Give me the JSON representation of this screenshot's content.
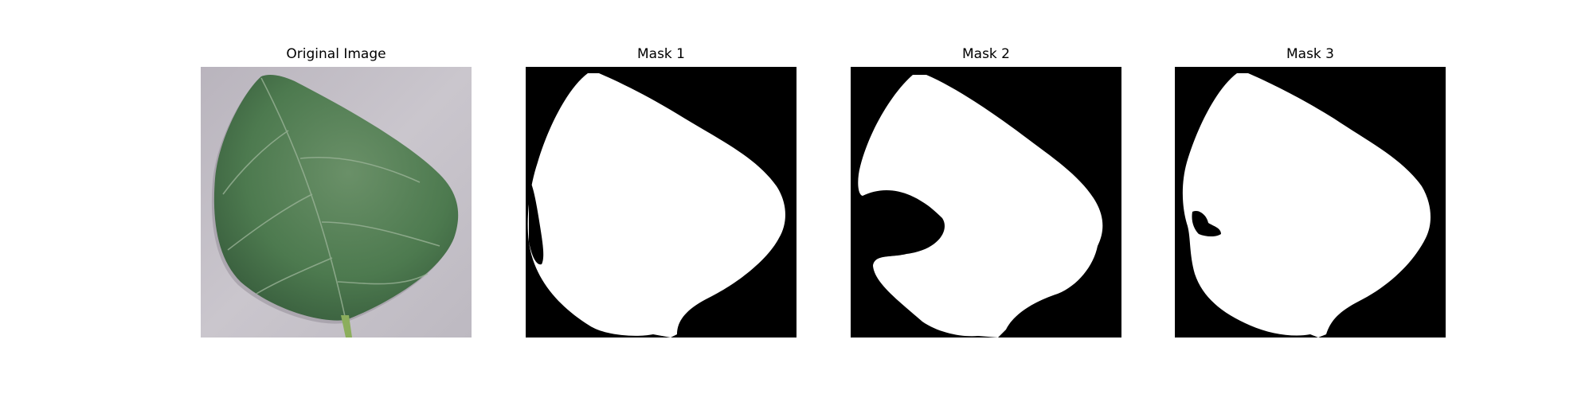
{
  "figure": {
    "panels": [
      {
        "title": "Original Image",
        "kind": "photo",
        "subject": "leaf-photo"
      },
      {
        "title": "Mask 1",
        "kind": "mask",
        "subject": "segmentation-mask"
      },
      {
        "title": "Mask 2",
        "kind": "mask",
        "subject": "segmentation-mask"
      },
      {
        "title": "Mask 3",
        "kind": "mask",
        "subject": "segmentation-mask"
      }
    ]
  },
  "colors": {
    "mask_foreground": "#ffffff",
    "mask_background": "#000000",
    "leaf_green": "#4d7a4f",
    "leaf_dark": "#35593a",
    "backdrop_gray": "#c0bcc4"
  }
}
